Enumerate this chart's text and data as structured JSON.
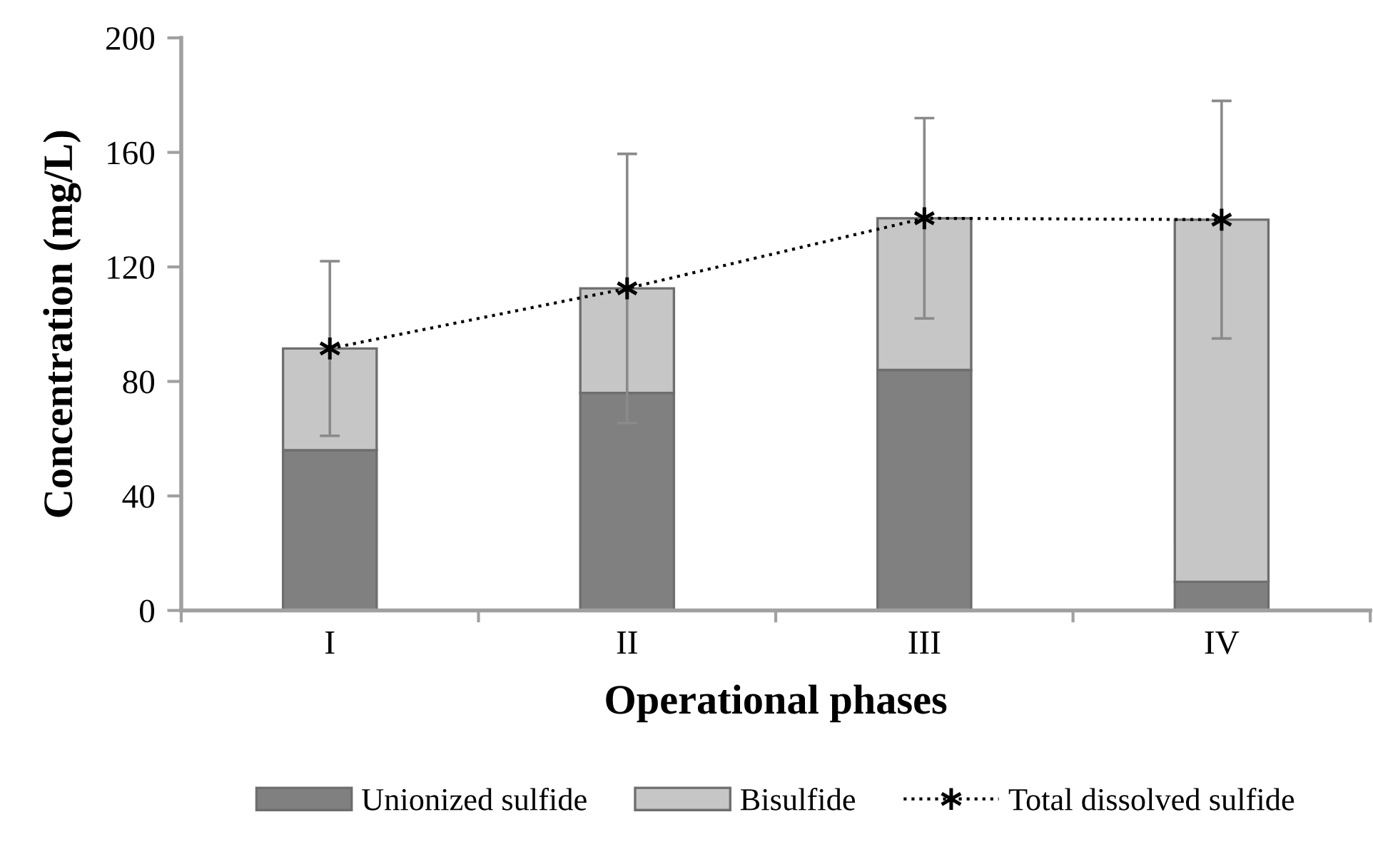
{
  "chart_data": {
    "type": "bar",
    "stacked": true,
    "xlabel": "Operational phases",
    "ylabel": "Concentration (mg/L)",
    "categories": [
      "I",
      "II",
      "III",
      "IV"
    ],
    "series": [
      {
        "name": "Unionized sulfide",
        "color": "#808080",
        "values": [
          56,
          76,
          84,
          10
        ]
      },
      {
        "name": "Bisulfide",
        "color": "#c6c6c6",
        "values": [
          35.5,
          36.5,
          53,
          126.5
        ]
      },
      {
        "name": "Total dissolved sulfide",
        "type": "line",
        "color": "#000000",
        "marker": "cross",
        "line_style": "dotted",
        "values": [
          91.5,
          112.5,
          137,
          136.5
        ],
        "errors": [
          30.5,
          47,
          35,
          41.5
        ]
      }
    ],
    "ylim": [
      0,
      200
    ],
    "yticks": [
      0,
      40,
      80,
      120,
      160,
      200
    ],
    "grid": false,
    "legend": "bottom"
  }
}
